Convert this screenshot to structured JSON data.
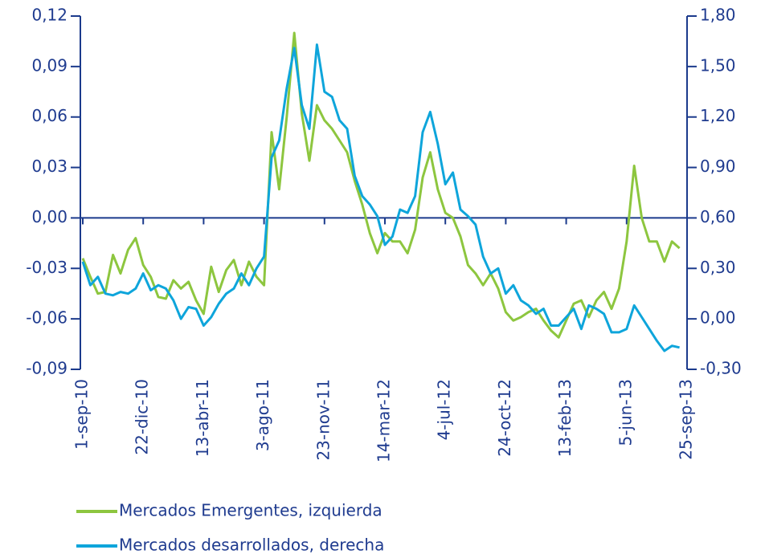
{
  "chart_data": {
    "type": "line",
    "categories": [
      "1-sep-10",
      null,
      null,
      null,
      null,
      null,
      null,
      null,
      "22-dic-10",
      null,
      null,
      null,
      null,
      null,
      null,
      null,
      "13-abr-11",
      null,
      null,
      null,
      null,
      null,
      null,
      null,
      "3-ago-11",
      null,
      null,
      null,
      null,
      null,
      null,
      null,
      "23-nov-11",
      null,
      null,
      null,
      null,
      null,
      null,
      null,
      "14-mar-12",
      null,
      null,
      null,
      null,
      null,
      null,
      null,
      "4-jul-12",
      null,
      null,
      null,
      null,
      null,
      null,
      null,
      "24-oct-12",
      null,
      null,
      null,
      null,
      null,
      null,
      null,
      "13-feb-13",
      null,
      null,
      null,
      null,
      null,
      null,
      null,
      "5-jun-13",
      null,
      null,
      null,
      null,
      null,
      null,
      null,
      "25-sep-13"
    ],
    "series": [
      {
        "name": "Mercados Emergentes, izquierda",
        "color": "#8dc63f",
        "values": [
          -0.024,
          -0.035,
          -0.045,
          -0.044,
          -0.022,
          -0.033,
          -0.019,
          -0.012,
          -0.028,
          -0.035,
          -0.047,
          -0.048,
          -0.037,
          -0.042,
          -0.038,
          -0.049,
          -0.057,
          -0.029,
          -0.044,
          -0.031,
          -0.025,
          -0.04,
          -0.026,
          -0.035,
          -0.04,
          0.051,
          0.017,
          0.06,
          0.11,
          0.062,
          0.034,
          0.067,
          0.058,
          0.053,
          0.046,
          0.039,
          0.022,
          0.008,
          -0.009,
          -0.021,
          -0.009,
          -0.014,
          -0.014,
          -0.021,
          -0.007,
          0.024,
          0.039,
          0.017,
          0.003,
          0.0,
          -0.011,
          -0.028,
          -0.033,
          -0.04,
          -0.033,
          -0.042,
          -0.056,
          -0.061,
          -0.059,
          -0.056,
          -0.054,
          -0.061,
          -0.067,
          -0.071,
          -0.061,
          -0.051,
          -0.049,
          -0.059,
          -0.049,
          -0.044,
          -0.054,
          -0.042,
          -0.014,
          0.031,
          0.0,
          -0.014,
          -0.014,
          -0.026,
          -0.014,
          -0.018,
          null
        ]
      },
      {
        "name": "Mercados desarrollados, derecha",
        "color": "#0ea5db",
        "axis": "y2",
        "values": [
          0.34,
          0.2,
          0.25,
          0.15,
          0.14,
          0.16,
          0.15,
          0.18,
          0.27,
          0.17,
          0.2,
          0.18,
          0.11,
          0.0,
          0.07,
          0.06,
          -0.04,
          0.01,
          0.09,
          0.15,
          0.18,
          0.27,
          0.2,
          0.3,
          0.37,
          0.96,
          1.06,
          1.37,
          1.61,
          1.27,
          1.13,
          1.63,
          1.35,
          1.32,
          1.18,
          1.13,
          0.85,
          0.73,
          0.68,
          0.61,
          0.44,
          0.49,
          0.65,
          0.63,
          0.73,
          1.11,
          1.23,
          1.04,
          0.8,
          0.87,
          0.65,
          0.61,
          0.56,
          0.37,
          0.27,
          0.3,
          0.15,
          0.2,
          0.11,
          0.08,
          0.03,
          0.06,
          -0.04,
          -0.04,
          0.01,
          0.06,
          -0.06,
          0.08,
          0.06,
          0.03,
          -0.08,
          -0.08,
          -0.06,
          0.08,
          0.01,
          -0.06,
          -0.13,
          -0.19,
          -0.16,
          -0.17,
          null
        ]
      }
    ],
    "ylim": [
      -0.09,
      0.12
    ],
    "yticks": [
      {
        "value": -0.09,
        "label": "-0,09"
      },
      {
        "value": -0.06,
        "label": "-0,06"
      },
      {
        "value": -0.03,
        "label": "-0,03"
      },
      {
        "value": 0,
        "label": "0,00"
      },
      {
        "value": 0.03,
        "label": "0,03"
      },
      {
        "value": 0.06,
        "label": "0,06"
      },
      {
        "value": 0.09,
        "label": "0,09"
      },
      {
        "value": 0.12,
        "label": "0,12"
      }
    ],
    "y2lim": [
      -0.3,
      1.8
    ],
    "y2ticks": [
      {
        "value": -0.3,
        "label": "-0,30"
      },
      {
        "value": 0,
        "label": "0,00"
      },
      {
        "value": 0.3,
        "label": "0,30"
      },
      {
        "value": 0.6,
        "label": "0,60"
      },
      {
        "value": 0.9,
        "label": "0,90"
      },
      {
        "value": 1.2,
        "label": "1,20"
      },
      {
        "value": 1.5,
        "label": "1,50"
      },
      {
        "value": 1.8,
        "label": "1,80"
      }
    ],
    "legend": "bottom-left"
  }
}
